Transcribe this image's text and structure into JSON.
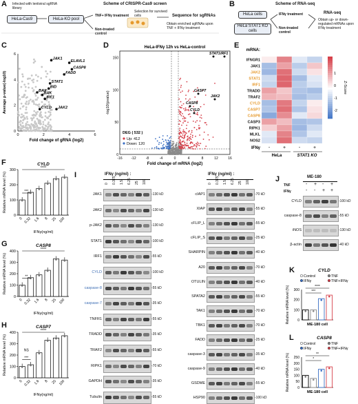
{
  "panelA": {
    "letter": "A",
    "title": "Scheme of CRISPR-Cas9 screen",
    "infect": "Infected with lentiviral sgRNA library",
    "cell1": "HeLa-Cas9",
    "pool": "HeLa-KO pool",
    "treat": "TNF+ IFNγ treatment",
    "control": "Non-treated control",
    "selection": "Selection for survived cells",
    "seq": "Sequence for sgRNAs",
    "obtain": "Obtain enriched sgRNAs upon TNF + IFNγ treatment"
  },
  "panelB": {
    "letter": "B",
    "title": "Scheme of RNA-seq",
    "cell1": "HeLa cells",
    "cell2": "HeLa STAT1 KO cells",
    "treat": "IFNγ treatment",
    "control": "Non-treated control",
    "rnaseq": "RNA-seq",
    "obtain": "Obtain up- or down-regulated mRNAs upon IFNγ treatment"
  },
  "panelC": {
    "letter": "C",
    "xlabel": "Fold change of gRNA (log2)",
    "ylabel": "Average p-value(-log10)",
    "xticks": [
      "0",
      "2",
      "4",
      "6"
    ],
    "yticks": [
      "0",
      "2",
      "4",
      "6"
    ],
    "genes": [
      "JAK1",
      "ELAVL1",
      "CASP8",
      "FADD",
      "STAT1",
      "BID",
      "BAX",
      "BAK",
      "IRF1",
      "CYLD",
      "JAK2"
    ]
  },
  "panelD": {
    "letter": "D",
    "title": "HeLa-IFNγ 12h  vs  HeLa-control",
    "xlabel": "Fold change of mRNA (log2)",
    "ylabel": "-log10(pvalue)",
    "xticks": [
      "-16",
      "-12",
      "-8",
      "-4",
      "0",
      "4",
      "8",
      "12",
      "16"
    ],
    "yticks": [
      "0",
      "50",
      "100",
      "150"
    ],
    "deg_title": "DEG ( 532 )",
    "up": "Up: 412",
    "down": "Down: 120",
    "genes": [
      "STAT1",
      "IRF1",
      "CASP7",
      "CASP8",
      "CYLD",
      "JAK2"
    ]
  },
  "panelE": {
    "letter": "E",
    "header": "mRNA:",
    "genes": [
      "IFNGR1",
      "JAK1",
      "JAK2",
      "STAT1",
      "IRF1",
      "TRADD",
      "TRAF2",
      "CYLD",
      "CASP7",
      "CASP8",
      "CASP3",
      "RIPK1",
      "MLKL",
      "NOS2"
    ],
    "orange_genes": [
      "JAK2",
      "STAT1",
      "IRF1",
      "CYLD",
      "CASP7",
      "CASP8"
    ],
    "ifng_label": "IFNγ",
    "ifng_states": [
      "-",
      "+",
      "-",
      "+"
    ],
    "groups": [
      "HeLa",
      "STAT1 KO"
    ],
    "scale_label": "Z-Score",
    "scale_ticks": [
      "1",
      "0",
      "-1",
      "-2"
    ]
  },
  "panelF": {
    "letter": "F",
    "gene": "CYLD",
    "ylabel": "Relative mRNA level (%)",
    "xlabel": "IFNγ(ng/ml)",
    "doses": [
      "0",
      "0.32",
      "1.6",
      "8",
      "25",
      "100"
    ],
    "values": [
      100,
      150,
      175,
      210,
      240,
      250
    ],
    "yticks": [
      "0",
      "100",
      "200",
      "300"
    ],
    "sig": [
      "****",
      "***"
    ]
  },
  "panelG": {
    "letter": "G",
    "gene": "CASP8",
    "ylabel": "Relative mRNA level (%)",
    "xlabel": "IFNγ(ng/ml)",
    "doses": [
      "0",
      "0.32",
      "1.6",
      "8",
      "25",
      "100"
    ],
    "values": [
      100,
      165,
      190,
      230,
      330,
      320
    ],
    "yticks": [
      "0",
      "100",
      "200",
      "300",
      "400"
    ],
    "sig": [
      "****",
      "**"
    ]
  },
  "panelH": {
    "letter": "H",
    "gene": "CASP7",
    "ylabel": "Relative mRNA level (%)",
    "xlabel": "IFNγ(ng/ml)",
    "doses": [
      "0",
      "0.32",
      "1.6",
      "8",
      "25",
      "100"
    ],
    "values": [
      100,
      115,
      220,
      330,
      350,
      370
    ],
    "yticks": [
      "0",
      "100",
      "200",
      "300",
      "400"
    ],
    "sig": [
      "****",
      "***",
      "NS"
    ]
  },
  "panelI": {
    "letter": "I",
    "header": "IFNγ (ng/ml) :",
    "doses": [
      "0",
      "0.375",
      "1.5",
      "6.25",
      "25",
      "100"
    ],
    "left_blots": [
      {
        "name": "JAK1",
        "mw": "130 kD",
        "blue": false
      },
      {
        "name": "JAK2",
        "mw": "130 kD",
        "blue": false
      },
      {
        "name": "p-JAK2",
        "mw": "130 kD",
        "blue": false
      },
      {
        "name": "STAT1",
        "mw": "100 kD",
        "blue": false
      },
      {
        "name": "IRF1",
        "mw": "55 kD",
        "blue": false
      },
      {
        "name": "CYLD",
        "mw": "100 kD",
        "blue": true
      },
      {
        "name": "caspase-8",
        "mw": "55 kD",
        "blue": true
      },
      {
        "name": "caspase-7",
        "mw": "35 kD",
        "blue": true
      },
      {
        "name": "TNFR1",
        "mw": "55 kD",
        "blue": false
      },
      {
        "name": "TRADD",
        "mw": "35 kD",
        "blue": false
      },
      {
        "name": "TRAF2",
        "mw": "55 kD",
        "blue": false
      },
      {
        "name": "RIPK1",
        "mw": "70 kD",
        "blue": false
      },
      {
        "name": "GAPDH",
        "mw": "35 kD",
        "blue": false
      },
      {
        "name": "Tubulin",
        "mw": "55 kD",
        "blue": false
      }
    ],
    "right_blots": [
      {
        "name": "cIAP1",
        "mw": "70 kD"
      },
      {
        "name": "XIAP",
        "mw": "55 kD"
      },
      {
        "name": "cFLIP_L",
        "mw": "55 kD"
      },
      {
        "name": "cFLIP_S",
        "mw": "25 kD"
      },
      {
        "name": "SHARPIN",
        "mw": "40 kD"
      },
      {
        "name": "A20",
        "mw": "70 kD"
      },
      {
        "name": "OTULIN",
        "mw": "40 kD"
      },
      {
        "name": "SPATA2",
        "mw": "55 kD"
      },
      {
        "name": "TAK1",
        "mw": "70 kD"
      },
      {
        "name": "TBK1",
        "mw": "70 kD"
      },
      {
        "name": "FADD",
        "mw": "25 kD"
      },
      {
        "name": "caspase-3",
        "mw": "35 kD"
      },
      {
        "name": "caspase-9",
        "mw": "40 kD"
      },
      {
        "name": "GSDME",
        "mw": "55 kD"
      },
      {
        "name": "HSP90",
        "mw": "100 kD"
      }
    ]
  },
  "panelJ": {
    "letter": "J",
    "cell": "ME-180",
    "tnf": "TNF",
    "ifng": "IFNγ",
    "tnf_states": [
      "-",
      "+",
      "-",
      "+"
    ],
    "ifng_states": [
      "-",
      "-",
      "+",
      "+"
    ],
    "blots": [
      {
        "name": "CYLD",
        "mw": "100 kD"
      },
      {
        "name": "caspase-8",
        "mw": "55 kD"
      },
      {
        "name": "iNOS",
        "mw": "130 kD"
      },
      {
        "name": "β-actin",
        "mw": "40 kD"
      }
    ]
  },
  "panelK": {
    "letter": "K",
    "gene": "CYLD",
    "legend": [
      "Control",
      "TNF",
      "IFNγ",
      "TNF+IFNγ"
    ],
    "ylabel": "Relative mRNA level (%)",
    "xlabel": "ME-180 cell",
    "values": [
      100,
      100,
      210,
      245
    ],
    "yticks": [
      "0",
      "100",
      "200",
      "300"
    ],
    "sig": [
      "****",
      "***"
    ]
  },
  "panelL": {
    "letter": "L",
    "gene": "CASP8",
    "legend": [
      "Control",
      "TNF",
      "IFNγ",
      "TNF+IFNγ"
    ],
    "ylabel": "Relative mRNA level (%)",
    "xlabel": "ME-180 cell",
    "values": [
      100,
      75,
      150,
      170
    ],
    "yticks": [
      "0",
      "50",
      "100",
      "150",
      "200",
      "250"
    ],
    "sig": [
      "**",
      "*"
    ]
  },
  "colors": {
    "red": "#d6404a",
    "blue": "#3a6fc4",
    "orange": "#e69a2e",
    "heat_high": "#d6404a",
    "heat_low": "#3a6fc4"
  }
}
